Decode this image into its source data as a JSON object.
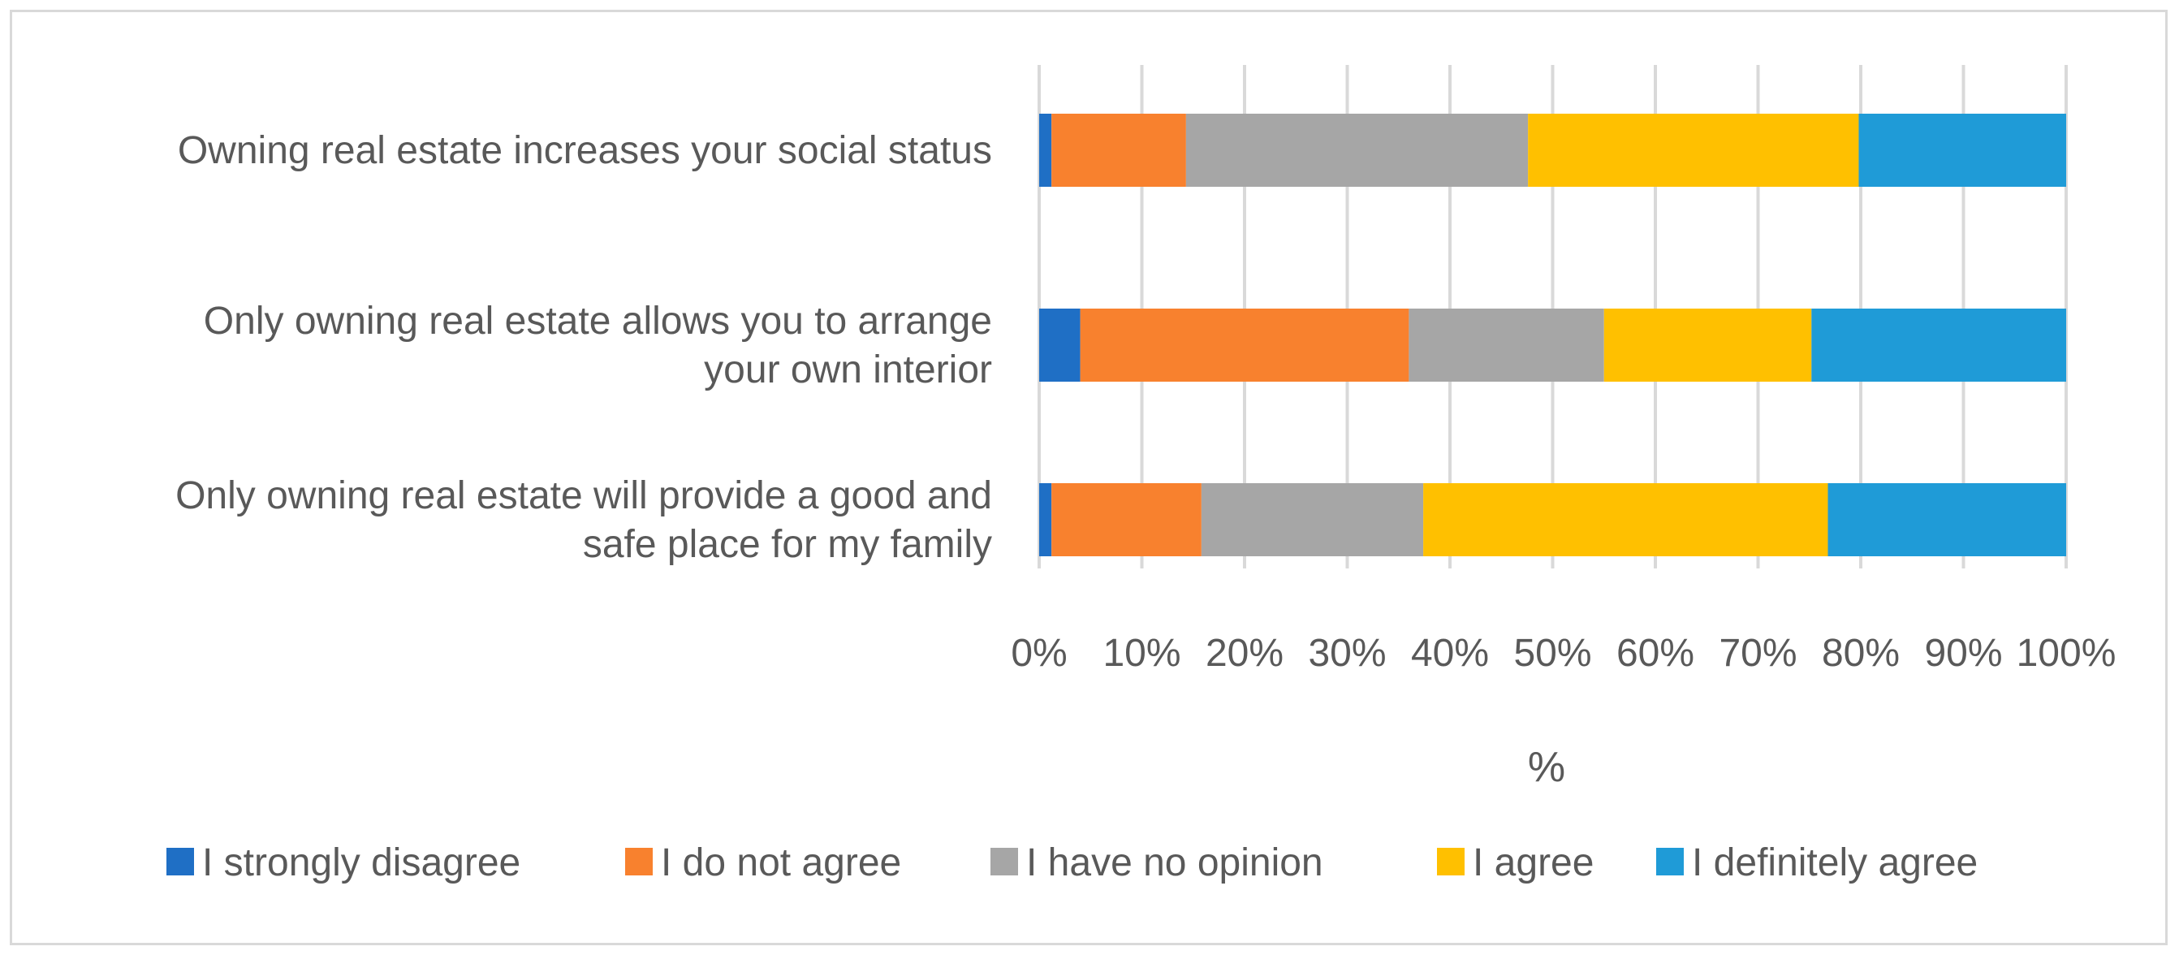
{
  "chart_data": {
    "type": "bar",
    "orientation": "horizontal",
    "stacked": "percent",
    "title": "",
    "categories": [
      [
        "Owning real estate increases your social status"
      ],
      [
        "Only owning real estate allows you to arrange",
        "your own interior"
      ],
      [
        "Only owning real estate will provide a good and",
        "safe place for my family"
      ]
    ],
    "series": [
      {
        "name": "I strongly disagree",
        "color": "#1f6fc5",
        "values": [
          1.2,
          4.0,
          1.2
        ]
      },
      {
        "name": "I do not agree",
        "color": "#f8812e",
        "values": [
          13.1,
          32.0,
          14.6
        ]
      },
      {
        "name": "I have no opinion",
        "color": "#a6a6a6",
        "values": [
          33.3,
          19.0,
          21.6
        ]
      },
      {
        "name": "I agree",
        "color": "#ffc000",
        "values": [
          32.2,
          20.2,
          39.4
        ]
      },
      {
        "name": "I definitely agree",
        "color": "#1f9bd7",
        "values": [
          20.2,
          24.8,
          23.2
        ]
      }
    ],
    "x_ticks": [
      "0%",
      "10%",
      "20%",
      "30%",
      "40%",
      "50%",
      "60%",
      "70%",
      "80%",
      "90%",
      "100%"
    ],
    "xlabel": "%",
    "ylabel": "",
    "xlim": [
      0,
      100
    ],
    "grid": true,
    "legend_position": "bottom"
  }
}
